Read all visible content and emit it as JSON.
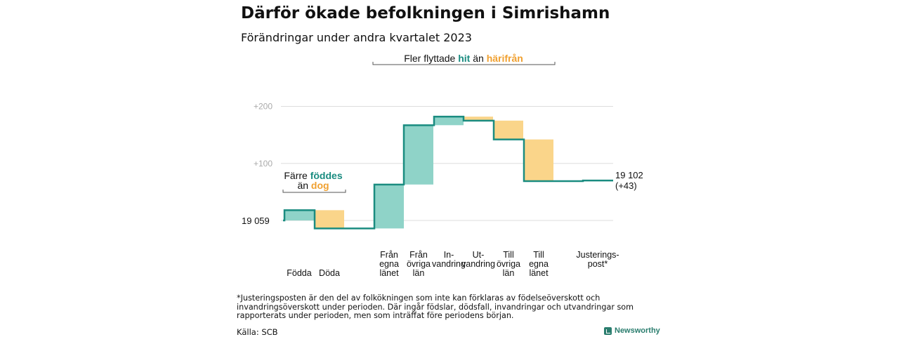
{
  "title": "Därför ökade befolkningen i Simrishamn",
  "subtitle": "Förändringar under andra kvartalet 2023",
  "chart_data": {
    "type": "waterfall",
    "start_value": 19059,
    "start_label": "19  059",
    "end_label_line1": "19 102",
    "end_label_line2": "(+43)",
    "y_ticks": [
      {
        "offset": 100,
        "label": "+100"
      },
      {
        "offset": 200,
        "label": "+200"
      }
    ],
    "ylim_offset": [
      -20,
      260
    ],
    "steps": [
      {
        "label": "Födda",
        "value": 18
      },
      {
        "label": "Döda",
        "value": -32
      },
      {
        "label": "Från egna länet",
        "value": 77
      },
      {
        "label": "Från övriga län",
        "value": 104
      },
      {
        "label": "In-vandring",
        "value": 15
      },
      {
        "label": "Ut-vandring",
        "value": -7
      },
      {
        "label": "Till övriga län",
        "value": -33
      },
      {
        "label": "Till egna länet",
        "value": -73
      },
      {
        "label": "Justerings-post*",
        "value": 1
      }
    ],
    "colors": {
      "increase": "#8fd3c8",
      "decrease": "#fad58a",
      "line": "#1a8c80",
      "grid": "#dddddd"
    },
    "annotations": {
      "births": {
        "line1": "Färre",
        "line1_hl": "föddes",
        "line2": "än",
        "line2_hl": "dog"
      },
      "migration": {
        "text": "Fler flyttade",
        "hl1": "hit",
        "mid": "än",
        "hl2": "härifrån"
      }
    }
  },
  "footnote": "*Justeringsposten är den del av folkökningen som inte kan förklaras av födelseöverskott och invandringsöverskott under perioden. Där ingår födslar, dödsfall, invandringar och utvandringar som rapporterats under perioden, men som inträffat före periodens början.",
  "source": "Källa: SCB",
  "brand": "Newsworthy"
}
